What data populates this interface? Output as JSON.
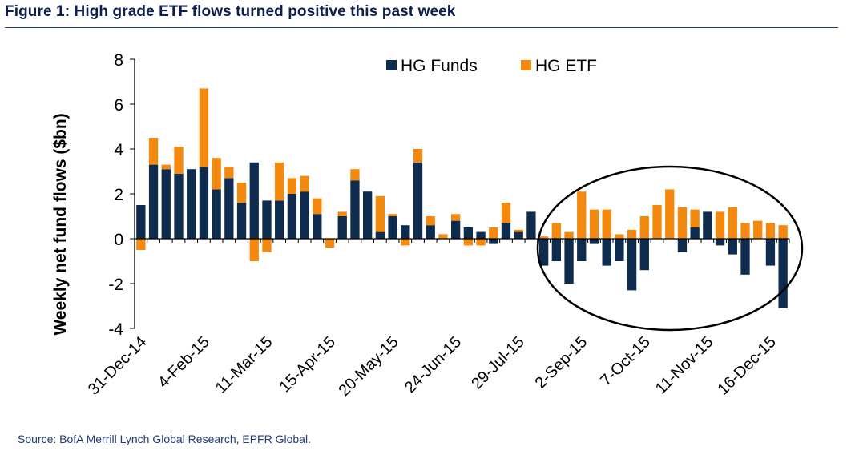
{
  "figure": {
    "title": "Figure 1: High grade ETF flows turned positive this past week",
    "source": "Source: BofA Merrill Lynch Global Research, EPFR Global."
  },
  "colors": {
    "funds": "#0f2b4d",
    "etf": "#f3890f",
    "title": "#0d1f4f",
    "rule": "#1f3a7a"
  },
  "chart_data": {
    "type": "bar",
    "stacked": true,
    "title": "",
    "xlabel": "",
    "ylabel": "Weekly net fund flows ($bn)",
    "ylim": [
      -4,
      8
    ],
    "yticks": [
      -4,
      -2,
      0,
      2,
      4,
      6,
      8
    ],
    "legend_position": "top-center",
    "x_tick_labels": [
      "31-Dec-14",
      "4-Feb-15",
      "11-Mar-15",
      "15-Apr-15",
      "20-May-15",
      "24-Jun-15",
      "29-Jul-15",
      "2-Sep-15",
      "7-Oct-15",
      "11-Nov-15",
      "16-Dec-15"
    ],
    "x_tick_every": 5,
    "series": [
      {
        "name": "HG Funds",
        "values": [
          1.5,
          3.3,
          3.1,
          2.9,
          3.1,
          3.2,
          2.2,
          2.7,
          1.6,
          3.4,
          1.7,
          1.7,
          2.0,
          2.1,
          1.1,
          0.0,
          1.0,
          2.6,
          2.1,
          0.3,
          1.0,
          0.6,
          3.4,
          0.6,
          0.0,
          0.8,
          0.5,
          0.3,
          -0.2,
          0.7,
          0.3,
          1.2,
          -1.2,
          -1.0,
          -2.0,
          -1.0,
          -0.2,
          -1.2,
          -1.0,
          -2.3,
          -1.4,
          0.0,
          0.0,
          -0.6,
          0.5,
          1.2,
          -0.3,
          -0.7,
          -1.6,
          0.0,
          -1.2,
          -3.1
        ]
      },
      {
        "name": "HG ETF",
        "values": [
          -0.5,
          1.2,
          0.2,
          1.2,
          0.0,
          3.5,
          1.4,
          0.5,
          0.9,
          -1.0,
          -0.6,
          1.7,
          0.7,
          0.7,
          0.7,
          -0.4,
          0.2,
          0.5,
          0.0,
          1.6,
          0.1,
          -0.3,
          0.6,
          0.4,
          0.2,
          0.3,
          -0.3,
          -0.3,
          0.5,
          0.9,
          0.1,
          0.0,
          0.1,
          0.7,
          0.3,
          2.1,
          1.3,
          1.3,
          0.2,
          0.4,
          1.0,
          1.5,
          2.2,
          1.4,
          0.8,
          0.0,
          1.2,
          1.4,
          0.7,
          0.8,
          0.7,
          0.6
        ]
      }
    ]
  }
}
